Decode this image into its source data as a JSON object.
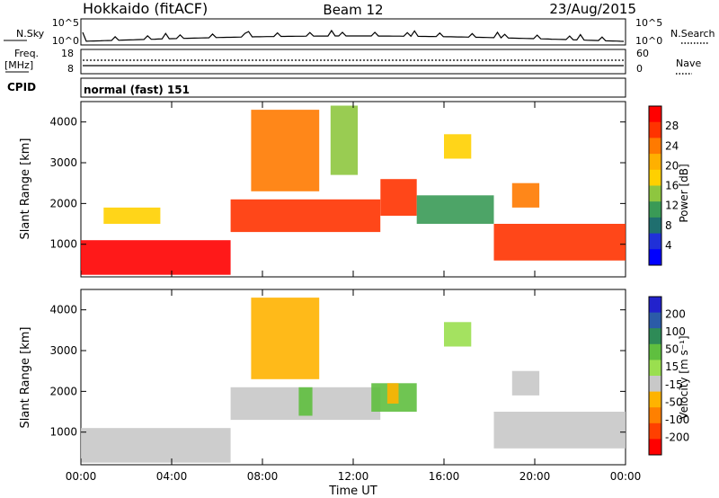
{
  "header": {
    "station": "Hokkaido (fitACF)",
    "beam": "Beam 12",
    "date": "23/Aug/2015"
  },
  "noise_panel": {
    "left_label": "N.Sky",
    "right_label": "N.Search",
    "left_ticks": [
      "10^5",
      "10^0"
    ],
    "right_ticks": [
      "10^5",
      "10^0"
    ]
  },
  "freq_panel": {
    "left_label_1": "Freq.",
    "left_label_2": "[MHz]",
    "left_ticks": [
      "18",
      "8"
    ],
    "right_label": "Nave",
    "right_ticks": [
      "60",
      "0"
    ]
  },
  "cpid_panel": {
    "label": "CPID",
    "value": "normal (fast) 151"
  },
  "power_colorbar": {
    "title": "Power [dB]",
    "ticks": [
      "28",
      "24",
      "20",
      "16",
      "12",
      "8",
      "4"
    ],
    "colors": [
      "#ff0000",
      "#ff3300",
      "#ff7a00",
      "#ffb000",
      "#ffd000",
      "#8ec63f",
      "#3a9a56",
      "#1f6f6f",
      "#2030d8",
      "#0000ff"
    ]
  },
  "velocity_colorbar": {
    "title": "Velocity [m s⁻¹]",
    "ticks": [
      "200",
      "100",
      "50",
      "15",
      "-15",
      "-50",
      "-100",
      "-200"
    ],
    "colors": [
      "#2222cc",
      "#2b5ba8",
      "#2e8b57",
      "#5fbf3f",
      "#9adf4f",
      "#c8c8c8",
      "#ffb300",
      "#ff8000",
      "#ff4000",
      "#ff0000"
    ]
  },
  "chart_data": [
    {
      "type": "heatmap",
      "name": "Power",
      "ylabel": "Slant Range [km]",
      "xlabel": "",
      "ylim": [
        200,
        4500
      ],
      "yticks": [
        "1000",
        "2000",
        "3000",
        "4000"
      ],
      "xlim": [
        "00:00",
        "24:00"
      ],
      "regions": [
        {
          "t0": 0.0,
          "t1": 6.6,
          "r0": 250,
          "r1": 1100,
          "level": 26
        },
        {
          "t0": 6.6,
          "t1": 13.2,
          "r0": 1300,
          "r1": 2100,
          "level": 24
        },
        {
          "t0": 7.5,
          "t1": 10.5,
          "r0": 2300,
          "r1": 4300,
          "level": 20
        },
        {
          "t0": 11.0,
          "t1": 12.2,
          "r0": 2700,
          "r1": 4400,
          "level": 14
        },
        {
          "t0": 13.2,
          "t1": 14.8,
          "r0": 1700,
          "r1": 2600,
          "level": 22
        },
        {
          "t0": 14.8,
          "t1": 18.2,
          "r0": 1500,
          "r1": 2200,
          "level": 12
        },
        {
          "t0": 16.0,
          "t1": 17.2,
          "r0": 3100,
          "r1": 3700,
          "level": 16
        },
        {
          "t0": 18.2,
          "t1": 24.0,
          "r0": 600,
          "r1": 1500,
          "level": 24
        },
        {
          "t0": 19.0,
          "t1": 20.2,
          "r0": 1900,
          "r1": 2500,
          "level": 20
        },
        {
          "t0": 1.0,
          "t1": 3.5,
          "r0": 1500,
          "r1": 1900,
          "level": 18
        }
      ]
    },
    {
      "type": "heatmap",
      "name": "Velocity",
      "ylabel": "Slant Range [km]",
      "xlabel": "Time UT",
      "ylim": [
        200,
        4500
      ],
      "yticks": [
        "1000",
        "2000",
        "3000",
        "4000"
      ],
      "xlim": [
        "00:00",
        "24:00"
      ],
      "xticks": [
        "00:00",
        "04:00",
        "08:00",
        "12:00",
        "16:00",
        "20:00",
        "00:00"
      ],
      "regions": [
        {
          "t0": 0.0,
          "t1": 6.6,
          "r0": 250,
          "r1": 1100,
          "level": 0
        },
        {
          "t0": 6.6,
          "t1": 13.2,
          "r0": 1300,
          "r1": 2100,
          "level": 0
        },
        {
          "t0": 9.6,
          "t1": 10.2,
          "r0": 1400,
          "r1": 2100,
          "level": 30
        },
        {
          "t0": 12.8,
          "t1": 14.8,
          "r0": 1500,
          "r1": 2200,
          "level": 30
        },
        {
          "t0": 13.5,
          "t1": 14.0,
          "r0": 1700,
          "r1": 2200,
          "level": -40
        },
        {
          "t0": 7.5,
          "t1": 10.5,
          "r0": 2300,
          "r1": 4300,
          "level": -20
        },
        {
          "t0": 16.0,
          "t1": 17.2,
          "r0": 3100,
          "r1": 3700,
          "level": 15
        },
        {
          "t0": 18.2,
          "t1": 24.0,
          "r0": 600,
          "r1": 1500,
          "level": 0
        },
        {
          "t0": 19.0,
          "t1": 20.2,
          "r0": 1900,
          "r1": 2500,
          "level": 0
        }
      ]
    }
  ]
}
